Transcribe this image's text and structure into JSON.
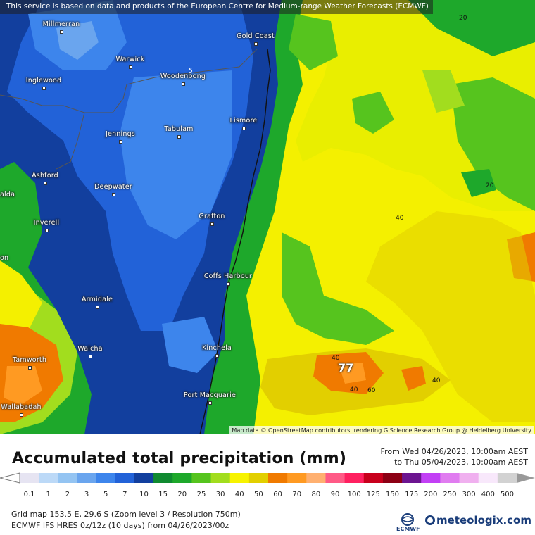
{
  "map": {
    "banner": "This service is based on data and products of the European Centre for Medium-range Weather Forecasts (ECMWF)",
    "attribution": "Map data © OpenStreetMap contributors, rendering GIScience Research Group @ Heidelberg University",
    "cities": [
      {
        "name": "Millmerran"
      },
      {
        "name": "Gold Coast"
      },
      {
        "name": "Warwick"
      },
      {
        "name": "Woodenbong"
      },
      {
        "name": "Inglewood"
      },
      {
        "name": "Lismore"
      },
      {
        "name": "Tabulam"
      },
      {
        "name": "Jennings"
      },
      {
        "name": "Ashford"
      },
      {
        "name": "Deepwater"
      },
      {
        "name": "Grafton"
      },
      {
        "name": "Inverell"
      },
      {
        "name": "Coffs Harbour"
      },
      {
        "name": "Armidale"
      },
      {
        "name": "Kinchela"
      },
      {
        "name": "Walcha"
      },
      {
        "name": "Tamworth"
      },
      {
        "name": "Port Macquarie"
      },
      {
        "name": "Wallabadah"
      }
    ],
    "edge_labels": {
      "left_a": "alda",
      "left_b": "on"
    },
    "contour_labels": [
      "5",
      "20",
      "20",
      "40",
      "40",
      "40",
      "40",
      "60"
    ],
    "max_value": "77"
  },
  "legend": {
    "title": "Accumulated total precipitation (mm)",
    "from": "From Wed 04/26/2023, 10:00am AEST",
    "to": "to Thu 05/04/2023, 10:00am AEST",
    "scale_values": [
      "0.1",
      "1",
      "2",
      "3",
      "5",
      "7",
      "10",
      "15",
      "20",
      "25",
      "30",
      "40",
      "50",
      "60",
      "70",
      "80",
      "90",
      "100",
      "125",
      "150",
      "175",
      "200",
      "250",
      "300",
      "400",
      "500"
    ],
    "scale_colors": [
      "#e6e4f2",
      "#bcd9f7",
      "#94c4f2",
      "#6aa5ee",
      "#3d85ec",
      "#2262d8",
      "#123f9e",
      "#108a30",
      "#1ea82b",
      "#56c41e",
      "#a2dd1e",
      "#f7f300",
      "#e2cf00",
      "#f07a00",
      "#ff9a22",
      "#ffb070",
      "#ff5a86",
      "#ff2060",
      "#c8001c",
      "#8c0014",
      "#6c1490",
      "#c23ff5",
      "#e07cf0",
      "#f0b0ef",
      "#f8e8fb",
      "#d2d2d2"
    ]
  },
  "info": {
    "line1": "Grid map 153.5 E, 29.6 S (Zoom level 3 / Resolution 750m)",
    "line2": "ECMWF IFS HRES 0z/12z (10 days)  from  04/26/2023/00z"
  },
  "brand": {
    "ecmwf": "ECMWF",
    "name": "meteologix.com"
  }
}
